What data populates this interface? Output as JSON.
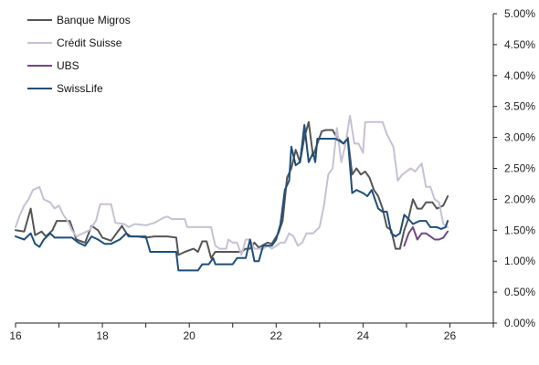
{
  "colors": {
    "background": "#ffffff",
    "axis": "#222222"
  },
  "chart_data": {
    "type": "line",
    "title": "",
    "xlabel": "",
    "ylabel": "",
    "xlim": [
      16,
      27
    ],
    "ylim": [
      0,
      5
    ],
    "x_ticks": [
      16,
      18,
      20,
      22,
      24,
      26
    ],
    "x_tick_labels": [
      "16",
      "18",
      "20",
      "22",
      "24",
      "26"
    ],
    "y_ticks": [
      0,
      0.5,
      1,
      1.5,
      2,
      2.5,
      3,
      3.5,
      4,
      4.5,
      5
    ],
    "y_tick_labels": [
      "0.00%",
      "0.50%",
      "1.00%",
      "1.50%",
      "2.00%",
      "2.50%",
      "3.00%",
      "3.50%",
      "4.00%",
      "4.50%",
      "5.00%"
    ],
    "y_axis_side": "right",
    "grid": false,
    "legend_position": "top-left",
    "series": [
      {
        "name": "Banque Migros",
        "color": "#555555",
        "points": [
          [
            16.0,
            1.5
          ],
          [
            16.2,
            1.48
          ],
          [
            16.35,
            1.85
          ],
          [
            16.45,
            1.42
          ],
          [
            16.6,
            1.48
          ],
          [
            16.7,
            1.4
          ],
          [
            16.85,
            1.5
          ],
          [
            16.95,
            1.65
          ],
          [
            17.25,
            1.65
          ],
          [
            17.4,
            1.35
          ],
          [
            17.6,
            1.3
          ],
          [
            17.75,
            1.57
          ],
          [
            17.9,
            1.5
          ],
          [
            18.0,
            1.38
          ],
          [
            18.2,
            1.33
          ],
          [
            18.45,
            1.57
          ],
          [
            18.6,
            1.4
          ],
          [
            18.8,
            1.4
          ],
          [
            19.0,
            1.38
          ],
          [
            19.2,
            1.4
          ],
          [
            19.5,
            1.4
          ],
          [
            19.7,
            1.38
          ],
          [
            19.75,
            1.1
          ],
          [
            19.9,
            1.15
          ],
          [
            20.1,
            1.2
          ],
          [
            20.2,
            1.15
          ],
          [
            20.3,
            1.32
          ],
          [
            20.4,
            1.32
          ],
          [
            20.5,
            1.05
          ],
          [
            20.6,
            1.15
          ],
          [
            20.8,
            1.15
          ],
          [
            21.0,
            1.15
          ],
          [
            21.2,
            1.15
          ],
          [
            21.3,
            1.2
          ],
          [
            21.4,
            1.2
          ],
          [
            21.5,
            1.3
          ],
          [
            21.6,
            1.22
          ],
          [
            21.8,
            1.3
          ],
          [
            21.9,
            1.28
          ],
          [
            22.05,
            1.45
          ],
          [
            22.15,
            1.65
          ],
          [
            22.25,
            2.35
          ],
          [
            22.35,
            2.5
          ],
          [
            22.45,
            2.8
          ],
          [
            22.55,
            2.6
          ],
          [
            22.65,
            3.0
          ],
          [
            22.75,
            3.25
          ],
          [
            22.85,
            2.7
          ],
          [
            22.95,
            2.9
          ],
          [
            23.05,
            3.1
          ],
          [
            23.15,
            3.12
          ],
          [
            23.3,
            3.12
          ],
          [
            23.4,
            3.0
          ],
          [
            23.55,
            2.9
          ],
          [
            23.65,
            3.0
          ],
          [
            23.75,
            2.4
          ],
          [
            23.85,
            2.5
          ],
          [
            23.95,
            2.4
          ],
          [
            24.05,
            2.45
          ],
          [
            24.15,
            2.35
          ],
          [
            24.25,
            2.15
          ],
          [
            24.35,
            2.05
          ],
          [
            24.45,
            1.85
          ],
          [
            24.55,
            1.55
          ],
          [
            24.65,
            1.5
          ],
          [
            24.75,
            1.2
          ],
          [
            24.85,
            1.2
          ],
          [
            24.95,
            1.5
          ],
          [
            25.05,
            1.7
          ],
          [
            25.15,
            2.0
          ],
          [
            25.25,
            1.85
          ],
          [
            25.35,
            1.85
          ],
          [
            25.45,
            1.95
          ],
          [
            25.6,
            1.95
          ],
          [
            25.7,
            1.85
          ],
          [
            25.85,
            1.9
          ],
          [
            25.95,
            2.05
          ]
        ]
      },
      {
        "name": "Crédit Suisse",
        "color": "#c7c0d4",
        "points": [
          [
            16.0,
            1.55
          ],
          [
            16.1,
            1.75
          ],
          [
            16.2,
            1.9
          ],
          [
            16.3,
            2.0
          ],
          [
            16.4,
            2.15
          ],
          [
            16.55,
            2.2
          ],
          [
            16.65,
            2.0
          ],
          [
            16.8,
            1.95
          ],
          [
            16.9,
            1.85
          ],
          [
            17.0,
            1.9
          ],
          [
            17.1,
            1.75
          ],
          [
            17.2,
            1.65
          ],
          [
            17.3,
            1.5
          ],
          [
            17.4,
            1.4
          ],
          [
            17.55,
            1.45
          ],
          [
            17.7,
            1.5
          ],
          [
            17.85,
            1.65
          ],
          [
            17.95,
            1.92
          ],
          [
            18.2,
            1.92
          ],
          [
            18.3,
            1.62
          ],
          [
            18.5,
            1.6
          ],
          [
            18.6,
            1.55
          ],
          [
            18.75,
            1.6
          ],
          [
            19.0,
            1.58
          ],
          [
            19.2,
            1.62
          ],
          [
            19.4,
            1.7
          ],
          [
            19.5,
            1.72
          ],
          [
            19.6,
            1.68
          ],
          [
            19.9,
            1.68
          ],
          [
            19.95,
            1.55
          ],
          [
            20.5,
            1.55
          ],
          [
            20.6,
            1.25
          ],
          [
            20.7,
            1.2
          ],
          [
            20.85,
            1.2
          ],
          [
            20.9,
            1.35
          ],
          [
            21.0,
            1.3
          ],
          [
            21.1,
            1.3
          ],
          [
            21.2,
            1.1
          ],
          [
            21.3,
            1.35
          ],
          [
            21.4,
            1.35
          ],
          [
            21.5,
            1.2
          ],
          [
            21.7,
            1.2
          ],
          [
            21.8,
            1.25
          ],
          [
            21.9,
            1.2
          ],
          [
            22.0,
            1.25
          ],
          [
            22.1,
            1.3
          ],
          [
            22.2,
            1.3
          ],
          [
            22.3,
            1.45
          ],
          [
            22.4,
            1.4
          ],
          [
            22.5,
            1.25
          ],
          [
            22.6,
            1.3
          ],
          [
            22.7,
            1.45
          ],
          [
            22.85,
            1.45
          ],
          [
            23.0,
            1.55
          ],
          [
            23.1,
            1.9
          ],
          [
            23.2,
            2.4
          ],
          [
            23.3,
            2.5
          ],
          [
            23.4,
            3.15
          ],
          [
            23.5,
            2.6
          ],
          [
            23.6,
            2.9
          ],
          [
            23.7,
            3.35
          ],
          [
            23.8,
            2.9
          ],
          [
            23.9,
            2.9
          ],
          [
            24.0,
            2.75
          ],
          [
            24.05,
            3.25
          ],
          [
            24.45,
            3.25
          ],
          [
            24.55,
            3.05
          ],
          [
            24.7,
            2.85
          ],
          [
            24.8,
            2.3
          ],
          [
            24.9,
            2.4
          ],
          [
            25.0,
            2.45
          ],
          [
            25.1,
            2.5
          ],
          [
            25.2,
            2.45
          ],
          [
            25.35,
            2.58
          ],
          [
            25.45,
            2.2
          ],
          [
            25.55,
            2.2
          ],
          [
            25.65,
            2.0
          ],
          [
            25.75,
            1.95
          ],
          [
            25.85,
            1.6
          ],
          [
            25.95,
            1.55
          ]
        ]
      },
      {
        "name": "UBS",
        "color": "#6e4a82",
        "points": [
          [
            24.95,
            1.25
          ],
          [
            25.05,
            1.45
          ],
          [
            25.15,
            1.55
          ],
          [
            25.25,
            1.35
          ],
          [
            25.35,
            1.45
          ],
          [
            25.45,
            1.45
          ],
          [
            25.55,
            1.4
          ],
          [
            25.65,
            1.35
          ],
          [
            25.75,
            1.35
          ],
          [
            25.85,
            1.38
          ],
          [
            25.95,
            1.48
          ]
        ]
      },
      {
        "name": "SwissLife",
        "color": "#1f4e79",
        "points": [
          [
            16.0,
            1.4
          ],
          [
            16.2,
            1.35
          ],
          [
            16.35,
            1.45
          ],
          [
            16.45,
            1.28
          ],
          [
            16.55,
            1.23
          ],
          [
            16.65,
            1.35
          ],
          [
            16.8,
            1.45
          ],
          [
            16.9,
            1.38
          ],
          [
            17.3,
            1.38
          ],
          [
            17.45,
            1.3
          ],
          [
            17.6,
            1.25
          ],
          [
            17.75,
            1.4
          ],
          [
            17.9,
            1.35
          ],
          [
            18.05,
            1.28
          ],
          [
            18.2,
            1.28
          ],
          [
            18.4,
            1.35
          ],
          [
            18.55,
            1.45
          ],
          [
            18.65,
            1.4
          ],
          [
            19.0,
            1.4
          ],
          [
            19.1,
            1.15
          ],
          [
            19.5,
            1.15
          ],
          [
            19.6,
            1.15
          ],
          [
            19.7,
            1.15
          ],
          [
            19.75,
            0.85
          ],
          [
            20.05,
            0.85
          ],
          [
            20.2,
            0.85
          ],
          [
            20.3,
            0.95
          ],
          [
            20.45,
            0.95
          ],
          [
            20.55,
            1.05
          ],
          [
            20.6,
            0.95
          ],
          [
            21.0,
            0.95
          ],
          [
            21.1,
            1.05
          ],
          [
            21.3,
            1.05
          ],
          [
            21.4,
            1.35
          ],
          [
            21.5,
            1.0
          ],
          [
            21.6,
            1.0
          ],
          [
            21.7,
            1.25
          ],
          [
            21.9,
            1.25
          ],
          [
            22.0,
            1.35
          ],
          [
            22.1,
            1.6
          ],
          [
            22.2,
            2.15
          ],
          [
            22.3,
            2.3
          ],
          [
            22.35,
            2.85
          ],
          [
            22.45,
            2.55
          ],
          [
            22.55,
            2.6
          ],
          [
            22.65,
            3.2
          ],
          [
            22.75,
            2.6
          ],
          [
            22.85,
            2.75
          ],
          [
            22.9,
            2.6
          ],
          [
            22.95,
            2.98
          ],
          [
            23.35,
            2.98
          ],
          [
            23.45,
            2.95
          ],
          [
            23.55,
            2.9
          ],
          [
            23.65,
            2.98
          ],
          [
            23.75,
            2.1
          ],
          [
            23.85,
            2.15
          ],
          [
            24.0,
            2.1
          ],
          [
            24.1,
            2.05
          ],
          [
            24.2,
            2.15
          ],
          [
            24.35,
            1.85
          ],
          [
            24.45,
            1.8
          ],
          [
            24.55,
            1.8
          ],
          [
            24.65,
            1.45
          ],
          [
            24.75,
            1.4
          ],
          [
            24.85,
            1.45
          ],
          [
            24.95,
            1.75
          ],
          [
            25.05,
            1.68
          ],
          [
            25.15,
            1.6
          ],
          [
            25.3,
            1.65
          ],
          [
            25.45,
            1.65
          ],
          [
            25.55,
            1.55
          ],
          [
            25.7,
            1.55
          ],
          [
            25.8,
            1.52
          ],
          [
            25.9,
            1.55
          ],
          [
            25.95,
            1.65
          ]
        ]
      }
    ]
  }
}
